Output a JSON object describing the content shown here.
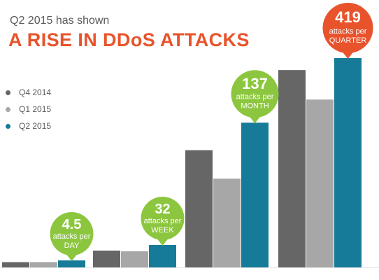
{
  "header": {
    "subtitle": "Q2 2015 has shown",
    "title": "A RISE IN DDoS ATTACKS"
  },
  "colors": {
    "q4_2014": "#666666",
    "q1_2015": "#a7a7a7",
    "q2_2015": "#157b98",
    "callout_green": "#8cc63e",
    "callout_orange": "#e8532b"
  },
  "chart_data": {
    "type": "bar",
    "title": "A RISE IN DDoS ATTACKS",
    "subtitle": "Q2 2015 has shown",
    "categories": [
      "",
      "",
      "",
      ""
    ],
    "series": [
      {
        "name": "Q4 2014",
        "values": [
          3.4,
          24,
          111,
          395
        ]
      },
      {
        "name": "Q1 2015",
        "values": [
          3.4,
          23,
          84,
          336
        ]
      },
      {
        "name": "Q2 2015",
        "values": [
          4.5,
          32,
          137,
          419
        ]
      }
    ],
    "legend_position": "left",
    "grid": false,
    "annotations": [
      {
        "value": "4.5",
        "line1": "attacks per",
        "line2": "DAY",
        "color": "green"
      },
      {
        "value": "32",
        "line1": "attacks per",
        "line2": "WEEK",
        "color": "green"
      },
      {
        "value": "137",
        "line1": "attacks per",
        "line2": "MONTH",
        "color": "green"
      },
      {
        "value": "419",
        "line1": "attacks per",
        "line2": "QUARTER",
        "color": "orange"
      }
    ]
  }
}
